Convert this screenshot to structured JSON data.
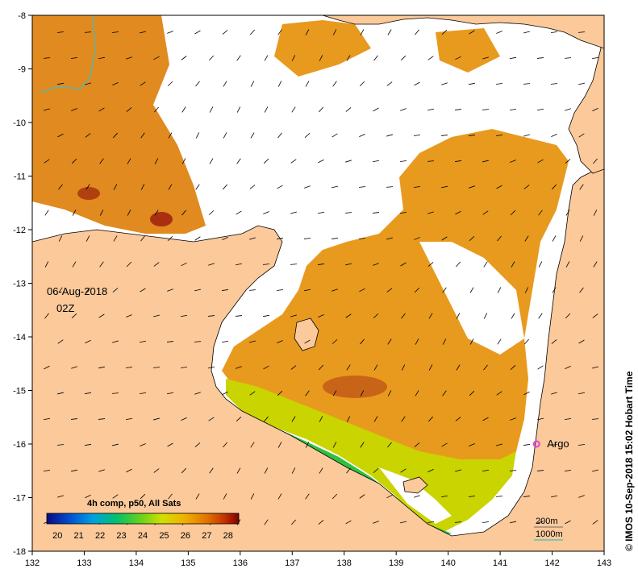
{
  "map": {
    "date": "06-Aug-2018",
    "time": "02Z",
    "lon_ticks": [
      "132",
      "133",
      "134",
      "135",
      "136",
      "137",
      "138",
      "139",
      "140",
      "141",
      "142",
      "143"
    ],
    "lat_ticks": [
      "-8",
      "-9",
      "-10",
      "-11",
      "-12",
      "-13",
      "-14",
      "-15",
      "-16",
      "-17",
      "-18"
    ],
    "lon_range": [
      132,
      143
    ],
    "lat_range": [
      -18,
      -8
    ],
    "credit": "© IMOS 10-Sep-2018 15:02 Hobart Time",
    "argo_label": "Argo",
    "argo_position": {
      "lon": 141.7,
      "lat": -16.0
    },
    "argo_color": "#e040e0",
    "land_color": "#fbc99a",
    "colorbar": {
      "title": "4h comp, p50, All Sats",
      "labels": [
        "20",
        "21",
        "22",
        "23",
        "24",
        "25",
        "26",
        "27",
        "28"
      ],
      "range": [
        19.5,
        28.5
      ],
      "colors": [
        "#0a0a80",
        "#0050d0",
        "#00a0e0",
        "#00c070",
        "#60d020",
        "#d0e000",
        "#f0b000",
        "#e07000",
        "#c03000",
        "#800000"
      ]
    },
    "contour_legend": {
      "items": [
        {
          "label": "200m",
          "color": "#6a6a6a"
        },
        {
          "label": "1000m",
          "color": "#40c0c0"
        }
      ]
    }
  }
}
